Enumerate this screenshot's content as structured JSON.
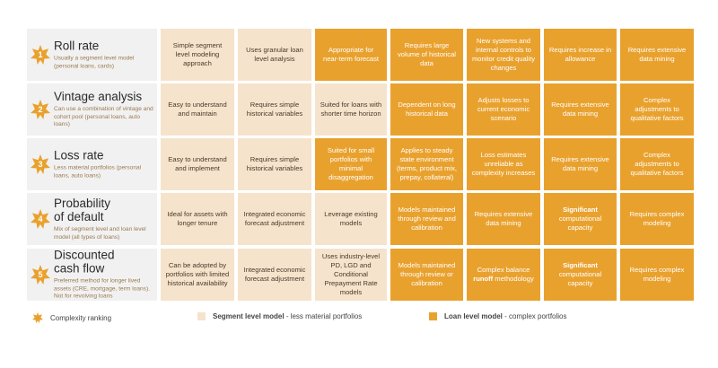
{
  "colors": {
    "light": "#f6e3cc",
    "dark": "#e9a12e",
    "label_bg": "#f1f1f1",
    "star": "#e9a12e"
  },
  "badge_icon": "star-badge-icon",
  "rows": [
    {
      "number": "1",
      "title_lines": [
        "Roll rate"
      ],
      "subtitle": "Usually a segment level model (personal loans, cards)",
      "cells": [
        {
          "style": "light",
          "parts": [
            {
              "text": "Simple segment level modeling approach"
            }
          ]
        },
        {
          "style": "light",
          "parts": [
            {
              "text": "Uses granular loan level analysis"
            }
          ]
        },
        {
          "style": "dark",
          "parts": [
            {
              "text": "Appropriate for near-term forecast"
            }
          ]
        },
        {
          "style": "dark",
          "parts": [
            {
              "text": "Requires large volume of historical data"
            }
          ]
        },
        {
          "style": "dark",
          "parts": [
            {
              "text": "New systems and internal controls to monitor credit quality changes"
            }
          ]
        },
        {
          "style": "dark",
          "parts": [
            {
              "text": "Requires increase in allowance"
            }
          ]
        },
        {
          "style": "dark",
          "parts": [
            {
              "text": "Requires extensive data mining"
            }
          ]
        }
      ]
    },
    {
      "number": "2",
      "title_lines": [
        "Vintage analysis"
      ],
      "subtitle": "Can use a combination of vintage and cohort pool (personal loans, auto loans)",
      "cells": [
        {
          "style": "light",
          "parts": [
            {
              "text": "Easy to understand and maintain"
            }
          ]
        },
        {
          "style": "light",
          "parts": [
            {
              "text": "Requires simple historical variables"
            }
          ]
        },
        {
          "style": "light",
          "parts": [
            {
              "text": "Suited for loans with shorter time horizon"
            }
          ]
        },
        {
          "style": "dark",
          "parts": [
            {
              "text": "Dependent on long historical data"
            }
          ]
        },
        {
          "style": "dark",
          "parts": [
            {
              "text": "Adjusts losses to current economic scenario"
            }
          ]
        },
        {
          "style": "dark",
          "parts": [
            {
              "text": "Requires extensive data mining"
            }
          ]
        },
        {
          "style": "dark",
          "parts": [
            {
              "text": "Complex adjustments to qualitative factors"
            }
          ]
        }
      ]
    },
    {
      "number": "3",
      "title_lines": [
        "Loss rate"
      ],
      "subtitle": "Less material portfolios (personal loans, auto loans)",
      "cells": [
        {
          "style": "light",
          "parts": [
            {
              "text": "Easy to understand and implement"
            }
          ]
        },
        {
          "style": "light",
          "parts": [
            {
              "text": "Requires simple historical variables"
            }
          ]
        },
        {
          "style": "dark",
          "parts": [
            {
              "text": "Suited for small portfolios with minimal disaggregation"
            }
          ]
        },
        {
          "style": "dark",
          "parts": [
            {
              "text": "Applies to steady state environment (terms, product mix, prepay, collateral)"
            }
          ]
        },
        {
          "style": "dark",
          "parts": [
            {
              "text": "Loss estimates unreliable as complexity increases"
            }
          ]
        },
        {
          "style": "dark",
          "parts": [
            {
              "text": "Requires extensive data mining"
            }
          ]
        },
        {
          "style": "dark",
          "parts": [
            {
              "text": "Complex adjustments to qualitative factors"
            }
          ]
        }
      ]
    },
    {
      "number": "4",
      "title_lines": [
        "Probability",
        "of default"
      ],
      "subtitle": "Mix of segment level and loan level model (all types of loans)",
      "cells": [
        {
          "style": "light",
          "parts": [
            {
              "text": "Ideal for assets with longer tenure"
            }
          ]
        },
        {
          "style": "light",
          "parts": [
            {
              "text": "Integrated economic forecast adjustment"
            }
          ]
        },
        {
          "style": "light",
          "parts": [
            {
              "text": "Leverage existing models"
            }
          ]
        },
        {
          "style": "dark",
          "parts": [
            {
              "text": "Models maintained through review and calibration"
            }
          ]
        },
        {
          "style": "dark",
          "parts": [
            {
              "text": "Requires extensive data mining"
            }
          ]
        },
        {
          "style": "dark",
          "parts": [
            {
              "text": "Significant",
              "bold": true
            },
            {
              "text": " computational capacity"
            }
          ]
        },
        {
          "style": "dark",
          "parts": [
            {
              "text": "Requires complex modeling"
            }
          ]
        }
      ]
    },
    {
      "number": "5",
      "title_lines": [
        "Discounted",
        "cash flow"
      ],
      "subtitle": "Preferred method for longer lived assets (CRE, mortgage, term loans). Not for revolving loans",
      "cells": [
        {
          "style": "light",
          "parts": [
            {
              "text": "Can be adopted by portfolios with limited historical availability"
            }
          ]
        },
        {
          "style": "light",
          "parts": [
            {
              "text": "Integrated economic forecast adjustment"
            }
          ]
        },
        {
          "style": "light",
          "parts": [
            {
              "text": "Uses industry-level PD, LGD and Conditional Prepayment Rate models"
            }
          ]
        },
        {
          "style": "dark",
          "parts": [
            {
              "text": "Models maintained through review or calibration"
            }
          ]
        },
        {
          "style": "dark",
          "parts": [
            {
              "text": "Complex balance "
            },
            {
              "text": "runoff",
              "bold": true
            },
            {
              "text": " methodology"
            }
          ]
        },
        {
          "style": "dark",
          "parts": [
            {
              "text": "Significant",
              "bold": true
            },
            {
              "text": " computational capacity"
            }
          ]
        },
        {
          "style": "dark",
          "parts": [
            {
              "text": "Requires complex modeling"
            }
          ]
        }
      ]
    }
  ],
  "legend": {
    "complexity": {
      "icon": "star-icon",
      "text": "Complexity ranking"
    },
    "segment": {
      "bold": "Segment level model",
      "rest": " - less material portfolios"
    },
    "loan": {
      "bold": "Loan level model",
      "rest": " - complex portfolios"
    }
  }
}
